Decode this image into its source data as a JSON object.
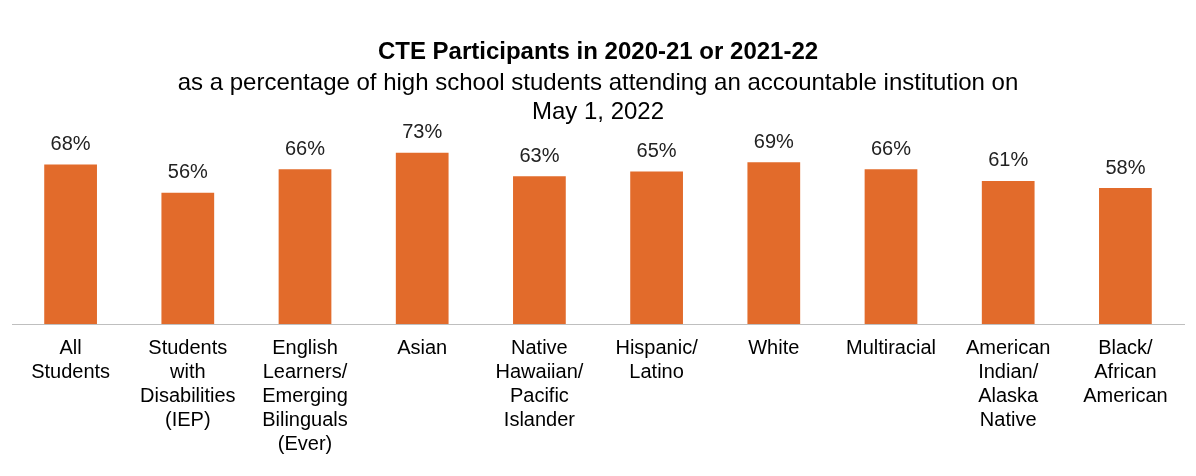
{
  "chart_data": {
    "type": "bar",
    "title": "CTE Participants in 2020-21 or 2021-22",
    "subtitle": "as a percentage of high school students attending an accountable institution on May 1, 2022",
    "categories": [
      "All Students",
      "Students with Disabilities (IEP)",
      "English Learners/ Emerging Bilinguals (Ever)",
      "Asian",
      "Native Hawaiian/ Pacific Islander",
      "Hispanic/Latino",
      "White",
      "Multiracial",
      "American Indian/ Alaska Native",
      "Black/ African American"
    ],
    "values": [
      68,
      56,
      66,
      73,
      63,
      65,
      69,
      66,
      61,
      58
    ],
    "value_labels": [
      "68%",
      "56%",
      "66%",
      "73%",
      "63%",
      "65%",
      "69%",
      "66%",
      "61%",
      "58%"
    ],
    "color": "#e26b2b",
    "grid": false,
    "legend": false
  }
}
